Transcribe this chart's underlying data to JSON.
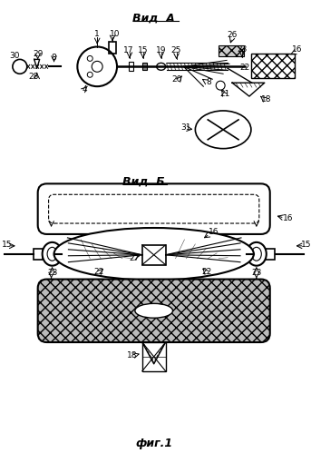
{
  "title_A": "Вид  А",
  "title_B": "Вид  Б",
  "fig_label": "фиг.1",
  "bg_color": "#ffffff",
  "line_color": "#000000",
  "text_color": "#000000"
}
